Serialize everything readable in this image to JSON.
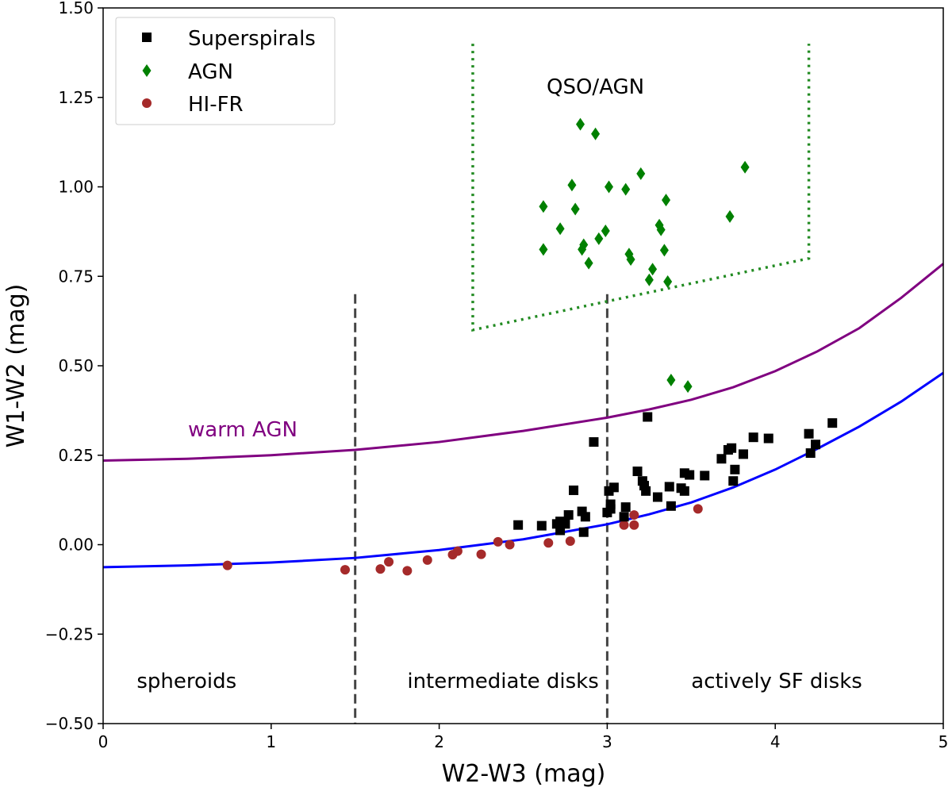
{
  "chart_data": {
    "type": "scatter",
    "title": "",
    "xlabel": "W2-W3 (mag)",
    "ylabel": "W1-W2 (mag)",
    "xlim": [
      0,
      5
    ],
    "ylim": [
      -0.5,
      1.5
    ],
    "x_ticks": [
      0,
      1,
      2,
      3,
      4,
      5
    ],
    "x_tick_labels": [
      "0",
      "1",
      "2",
      "3",
      "4",
      "5"
    ],
    "y_ticks": [
      -0.5,
      -0.25,
      0.0,
      0.25,
      0.5,
      0.75,
      1.0,
      1.25,
      1.5
    ],
    "y_tick_labels": [
      "−0.50",
      "−0.25",
      "0.00",
      "0.25",
      "0.50",
      "0.75",
      "1.00",
      "1.25",
      "1.50"
    ],
    "grid": false,
    "legend_position": "top-left",
    "series": [
      {
        "name": "Superspirals",
        "marker": "square",
        "color": "#000000",
        "points": [
          [
            2.47,
            0.055
          ],
          [
            2.61,
            0.053
          ],
          [
            2.7,
            0.058
          ],
          [
            2.72,
            0.065
          ],
          [
            2.72,
            0.04
          ],
          [
            2.75,
            0.058
          ],
          [
            2.77,
            0.083
          ],
          [
            2.8,
            0.152
          ],
          [
            2.85,
            0.093
          ],
          [
            2.86,
            0.035
          ],
          [
            2.87,
            0.078
          ],
          [
            2.92,
            0.287
          ],
          [
            3.0,
            0.09
          ],
          [
            3.01,
            0.15
          ],
          [
            3.02,
            0.113
          ],
          [
            3.02,
            0.1
          ],
          [
            3.04,
            0.16
          ],
          [
            3.1,
            0.078
          ],
          [
            3.11,
            0.105
          ],
          [
            3.18,
            0.205
          ],
          [
            3.21,
            0.178
          ],
          [
            3.22,
            0.165
          ],
          [
            3.23,
            0.15
          ],
          [
            3.24,
            0.357
          ],
          [
            3.3,
            0.133
          ],
          [
            3.37,
            0.162
          ],
          [
            3.38,
            0.108
          ],
          [
            3.44,
            0.158
          ],
          [
            3.46,
            0.15
          ],
          [
            3.46,
            0.2
          ],
          [
            3.49,
            0.195
          ],
          [
            3.58,
            0.193
          ],
          [
            3.68,
            0.24
          ],
          [
            3.72,
            0.265
          ],
          [
            3.74,
            0.27
          ],
          [
            3.75,
            0.178
          ],
          [
            3.76,
            0.21
          ],
          [
            3.81,
            0.253
          ],
          [
            3.87,
            0.3
          ],
          [
            3.96,
            0.297
          ],
          [
            4.2,
            0.31
          ],
          [
            4.21,
            0.256
          ],
          [
            4.24,
            0.28
          ],
          [
            4.34,
            0.34
          ]
        ]
      },
      {
        "name": "AGN",
        "marker": "diamond",
        "color": "#008000",
        "points": [
          [
            2.84,
            1.175
          ],
          [
            2.93,
            1.148
          ],
          [
            2.62,
            0.945
          ],
          [
            2.62,
            0.825
          ],
          [
            2.72,
            0.883
          ],
          [
            2.79,
            1.005
          ],
          [
            2.81,
            0.938
          ],
          [
            2.85,
            0.825
          ],
          [
            2.86,
            0.838
          ],
          [
            2.89,
            0.787
          ],
          [
            2.95,
            0.855
          ],
          [
            2.99,
            0.877
          ],
          [
            3.01,
            1.0
          ],
          [
            3.11,
            0.993
          ],
          [
            3.13,
            0.812
          ],
          [
            3.14,
            0.797
          ],
          [
            3.2,
            1.037
          ],
          [
            3.25,
            0.74
          ],
          [
            3.27,
            0.77
          ],
          [
            3.31,
            0.893
          ],
          [
            3.32,
            0.88
          ],
          [
            3.34,
            0.823
          ],
          [
            3.35,
            0.963
          ],
          [
            3.36,
            0.735
          ],
          [
            3.38,
            0.46
          ],
          [
            3.48,
            0.442
          ],
          [
            3.73,
            0.917
          ],
          [
            3.82,
            1.055
          ]
        ]
      },
      {
        "name": "HI-FR",
        "marker": "circle",
        "color": "#a52a2a",
        "points": [
          [
            0.74,
            -0.058
          ],
          [
            1.44,
            -0.07
          ],
          [
            1.65,
            -0.068
          ],
          [
            1.7,
            -0.048
          ],
          [
            1.81,
            -0.073
          ],
          [
            1.93,
            -0.043
          ],
          [
            2.08,
            -0.028
          ],
          [
            2.11,
            -0.018
          ],
          [
            2.25,
            -0.027
          ],
          [
            2.35,
            0.008
          ],
          [
            2.42,
            0.0
          ],
          [
            2.65,
            0.005
          ],
          [
            2.78,
            0.01
          ],
          [
            3.1,
            0.055
          ],
          [
            3.16,
            0.083
          ],
          [
            3.16,
            0.055
          ],
          [
            3.54,
            0.1
          ]
        ]
      }
    ],
    "curves": [
      {
        "name": "warm AGN",
        "color": "#800080",
        "label": "warm AGN",
        "function": "0.1*(x+0.01)^2.1+0.235 style rising curve",
        "points": [
          [
            0,
            0.235
          ],
          [
            0.5,
            0.24
          ],
          [
            1,
            0.25
          ],
          [
            1.5,
            0.265
          ],
          [
            2,
            0.287
          ],
          [
            2.5,
            0.318
          ],
          [
            3,
            0.355
          ],
          [
            3.25,
            0.378
          ],
          [
            3.5,
            0.405
          ],
          [
            3.75,
            0.44
          ],
          [
            4,
            0.485
          ],
          [
            4.25,
            0.54
          ],
          [
            4.5,
            0.605
          ],
          [
            4.75,
            0.69
          ],
          [
            5,
            0.785
          ]
        ]
      },
      {
        "name": "blue",
        "color": "#0000ff",
        "label": "",
        "points": [
          [
            0,
            -0.063
          ],
          [
            0.5,
            -0.058
          ],
          [
            1,
            -0.05
          ],
          [
            1.5,
            -0.037
          ],
          [
            2,
            -0.015
          ],
          [
            2.5,
            0.015
          ],
          [
            3,
            0.057
          ],
          [
            3.25,
            0.085
          ],
          [
            3.5,
            0.118
          ],
          [
            3.75,
            0.16
          ],
          [
            4,
            0.21
          ],
          [
            4.25,
            0.268
          ],
          [
            4.5,
            0.33
          ],
          [
            4.75,
            0.4
          ],
          [
            5,
            0.48
          ]
        ]
      }
    ],
    "vertical_lines": [
      {
        "x": 1.5,
        "y_range": [
          -0.5,
          0.7
        ],
        "style": "dashed",
        "color": "#444444"
      },
      {
        "x": 3.0,
        "y_range": [
          -0.5,
          0.7
        ],
        "style": "dashed",
        "color": "#444444"
      }
    ],
    "qso_box": {
      "color": "#228b22",
      "style": "dotted",
      "points": [
        [
          2.2,
          1.4
        ],
        [
          2.2,
          0.6
        ],
        [
          4.2,
          0.8
        ],
        [
          4.2,
          1.4
        ]
      ]
    },
    "annotations": [
      {
        "text": "QSO/AGN",
        "x": 2.93,
        "y": 1.28
      },
      {
        "text": "spheroids",
        "x": 0.2,
        "y": -0.38
      },
      {
        "text": "intermediate disks",
        "x": 1.81,
        "y": -0.38
      },
      {
        "text": "actively SF disks",
        "x": 3.5,
        "y": -0.38
      }
    ]
  }
}
